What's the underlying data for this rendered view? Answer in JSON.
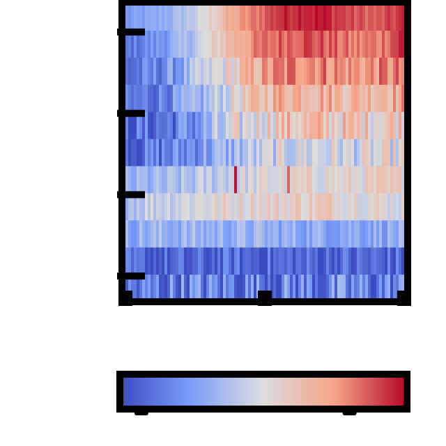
{
  "chart_data": {
    "type": "heatmap",
    "title": "",
    "xlabel": "",
    "ylabel": "",
    "colormap": "coolwarm",
    "value_range": [
      -1,
      1
    ],
    "n_rows": 11,
    "n_cols": 100,
    "row_profiles": [
      [
        -0.55,
        -0.45,
        -0.3,
        -0.05,
        0.35,
        0.6,
        0.85,
        0.95,
        0.9,
        0.75,
        0.7,
        0.85
      ],
      [
        -0.75,
        -0.6,
        -0.4,
        -0.1,
        0.3,
        0.55,
        0.7,
        0.8,
        0.72,
        0.6,
        0.62,
        0.9
      ],
      [
        -0.8,
        -0.7,
        -0.5,
        -0.2,
        0.05,
        0.35,
        0.55,
        0.65,
        0.6,
        0.5,
        0.55,
        0.6
      ],
      [
        -0.8,
        -0.7,
        -0.55,
        -0.35,
        -0.05,
        0.2,
        0.4,
        0.45,
        0.4,
        0.35,
        0.4,
        0.45
      ],
      [
        -0.85,
        -0.8,
        -0.7,
        -0.5,
        -0.2,
        0.05,
        0.2,
        0.25,
        0.22,
        0.18,
        0.2,
        0.25
      ],
      [
        -0.8,
        -0.75,
        -0.65,
        -0.5,
        -0.35,
        -0.2,
        -0.1,
        -0.05,
        -0.05,
        -0.1,
        -0.05,
        0.0
      ],
      [
        -0.4,
        -0.35,
        -0.3,
        -0.2,
        -0.1,
        -0.05,
        0.0,
        0.05,
        0.05,
        0.05,
        0.1,
        0.1
      ],
      [
        -0.2,
        -0.1,
        -0.05,
        0.0,
        0.05,
        0.1,
        0.1,
        0.15,
        0.15,
        0.1,
        0.05,
        0.0
      ],
      [
        -0.4,
        -0.35,
        -0.35,
        -0.35,
        -0.35,
        -0.35,
        -0.4,
        -0.4,
        -0.4,
        -0.4,
        -0.4,
        -0.4
      ],
      [
        -0.9,
        -0.9,
        -0.9,
        -0.9,
        -0.85,
        -0.85,
        -0.85,
        -0.85,
        -0.85,
        -0.85,
        -0.85,
        -0.85
      ],
      [
        -0.8,
        -0.75,
        -0.7,
        -0.7,
        -0.7,
        -0.7,
        -0.7,
        -0.7,
        -0.7,
        -0.7,
        -0.7,
        -0.7
      ]
    ],
    "noise_amplitude": [
      0.1,
      0.15,
      0.25,
      0.25,
      0.35,
      0.3,
      0.2,
      0.2,
      0.2,
      0.3,
      0.45
    ],
    "hotspots": [
      {
        "row": 6,
        "col": 39,
        "value": 0.95
      },
      {
        "row": 6,
        "col": 58,
        "value": 0.7
      },
      {
        "row": 7,
        "col": 43,
        "value": -0.02
      },
      {
        "row": 7,
        "col": 44,
        "value": -0.02
      }
    ],
    "x_ticks": [
      0,
      50,
      100
    ],
    "y_ticks": [
      1,
      4,
      7,
      10
    ],
    "tick_labels": [],
    "colorbar": {
      "orientation": "horizontal",
      "ticks": [
        0.075,
        0.8
      ],
      "tick_labels": []
    }
  },
  "colors": {
    "cool_end": "#3b4cc0",
    "neutral": "#dddddd",
    "warm_end": "#b40426",
    "frame": "#000000",
    "background": "#ffffff"
  }
}
